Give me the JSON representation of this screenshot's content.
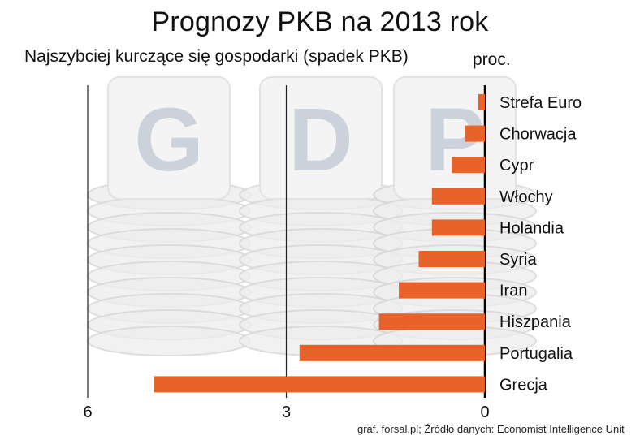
{
  "title": "Prognozy PKB na 2013 rok",
  "subtitle": "Najszybciej kurczące się gospodarki (spadek PKB)",
  "unit": "proc.",
  "source": "graf. forsal.pl; Źródło danych: Economist Intelligence Unit",
  "background_letters": [
    "G",
    "D",
    "P"
  ],
  "colors": {
    "bar": "#e8622a",
    "gridline": "#222222",
    "background_art": "#d6d6d6"
  },
  "chart_data": {
    "type": "bar",
    "orientation": "horizontal",
    "categories": [
      "Strefa Euro",
      "Chorwacja",
      "Cypr",
      "Włochy",
      "Holandia",
      "Syria",
      "Iran",
      "Hiszpania",
      "Portugalia",
      "Grecja"
    ],
    "values": [
      0.1,
      0.3,
      0.5,
      0.8,
      0.8,
      1.0,
      1.3,
      1.6,
      2.8,
      5.0
    ],
    "xlabel": "",
    "ylabel": "proc.",
    "xlim": [
      0,
      6
    ],
    "xticks": [
      "6",
      "3",
      "0"
    ],
    "axis_direction": "reversed",
    "grid": true
  }
}
